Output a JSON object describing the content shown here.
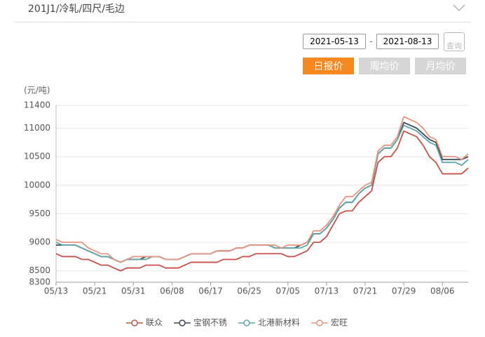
{
  "header": {
    "title": "201J1/冷轧/四尺/毛边"
  },
  "controls": {
    "start_date": "2021-05-13",
    "separator": "-",
    "end_date": "2021-08-13",
    "query": "查询",
    "tabs": [
      "日报价",
      "周均价",
      "月均价"
    ]
  },
  "chart_data": {
    "type": "line",
    "y_unit": "(元/吨)",
    "categories": [
      "05/13",
      null,
      null,
      null,
      null,
      null,
      "05/21",
      null,
      null,
      null,
      null,
      null,
      "05/31",
      null,
      null,
      null,
      null,
      null,
      "06/08",
      null,
      null,
      null,
      null,
      null,
      "06/17",
      null,
      null,
      null,
      null,
      null,
      "06/25",
      null,
      null,
      null,
      null,
      null,
      "07/05",
      null,
      null,
      null,
      null,
      null,
      "07/13",
      null,
      null,
      null,
      null,
      null,
      "07/21",
      null,
      null,
      null,
      null,
      null,
      "07/29",
      null,
      null,
      null,
      null,
      null,
      "08/06",
      null,
      null,
      null,
      null
    ],
    "ylim": [
      8300,
      11400
    ],
    "yticks": [
      8300,
      8500,
      9000,
      9500,
      10000,
      10500,
      11000,
      11400
    ],
    "grid": true,
    "series": [
      {
        "name": "联众",
        "color": "#c8504a",
        "values": [
          8800,
          8750,
          8750,
          8750,
          8700,
          8700,
          8650,
          8600,
          8600,
          8550,
          8500,
          8550,
          8550,
          8550,
          8600,
          8600,
          8600,
          8550,
          8550,
          8550,
          8600,
          8650,
          8650,
          8650,
          8650,
          8650,
          8700,
          8700,
          8700,
          8750,
          8750,
          8800,
          8800,
          8800,
          8800,
          8800,
          8750,
          8750,
          8800,
          8850,
          9000,
          9000,
          9100,
          9300,
          9500,
          9550,
          9550,
          9700,
          9800,
          9900,
          10400,
          10500,
          10500,
          10650,
          10950,
          10900,
          10850,
          10700,
          10500,
          10400,
          10200,
          10200,
          10200,
          10200,
          10300
        ]
      },
      {
        "name": "宝钢不锈",
        "color": "#3b4654",
        "values": [
          8950,
          8950,
          8950,
          8950,
          8900,
          8850,
          8800,
          8750,
          8750,
          8700,
          8650,
          8700,
          8700,
          8700,
          8750,
          8750,
          8750,
          8700,
          8700,
          8700,
          8750,
          8800,
          8800,
          8800,
          8800,
          8850,
          8850,
          8850,
          8900,
          8900,
          8950,
          8950,
          8950,
          8950,
          8900,
          8900,
          8900,
          8900,
          8950,
          9000,
          9150,
          9150,
          9250,
          9400,
          9600,
          9700,
          9700,
          9850,
          9950,
          10000,
          10550,
          10650,
          10650,
          10800,
          11100,
          11050,
          11000,
          10900,
          10800,
          10750,
          10450,
          10450,
          10450,
          10450,
          10500
        ]
      },
      {
        "name": "北港新材料",
        "color": "#5ea6a6",
        "values": [
          9000,
          8950,
          8950,
          8950,
          8900,
          8850,
          8800,
          8750,
          8750,
          8700,
          8650,
          8700,
          8700,
          8700,
          8700,
          8750,
          8750,
          8700,
          8700,
          8700,
          8750,
          8800,
          8800,
          8800,
          8800,
          8850,
          8850,
          8850,
          8900,
          8900,
          8950,
          8950,
          8950,
          8950,
          8900,
          8900,
          8900,
          8900,
          8900,
          8950,
          9150,
          9150,
          9250,
          9400,
          9600,
          9700,
          9700,
          9850,
          9950,
          10000,
          10550,
          10650,
          10650,
          10800,
          11050,
          11000,
          10950,
          10850,
          10750,
          10700,
          10400,
          10400,
          10400,
          10350,
          10450
        ]
      },
      {
        "name": "宏旺",
        "color": "#e89480",
        "values": [
          9050,
          9000,
          9000,
          9000,
          9000,
          8900,
          8850,
          8800,
          8800,
          8700,
          8650,
          8700,
          8750,
          8750,
          8750,
          8750,
          8750,
          8700,
          8700,
          8700,
          8750,
          8800,
          8800,
          8800,
          8800,
          8850,
          8850,
          8850,
          8900,
          8900,
          8950,
          8950,
          8950,
          8950,
          8950,
          8900,
          8950,
          8950,
          8950,
          9000,
          9200,
          9200,
          9300,
          9450,
          9650,
          9800,
          9800,
          9900,
          10000,
          10050,
          10600,
          10700,
          10700,
          10850,
          11200,
          11150,
          11100,
          11000,
          10850,
          10800,
          10500,
          10500,
          10500,
          10450,
          10550
        ]
      }
    ]
  }
}
